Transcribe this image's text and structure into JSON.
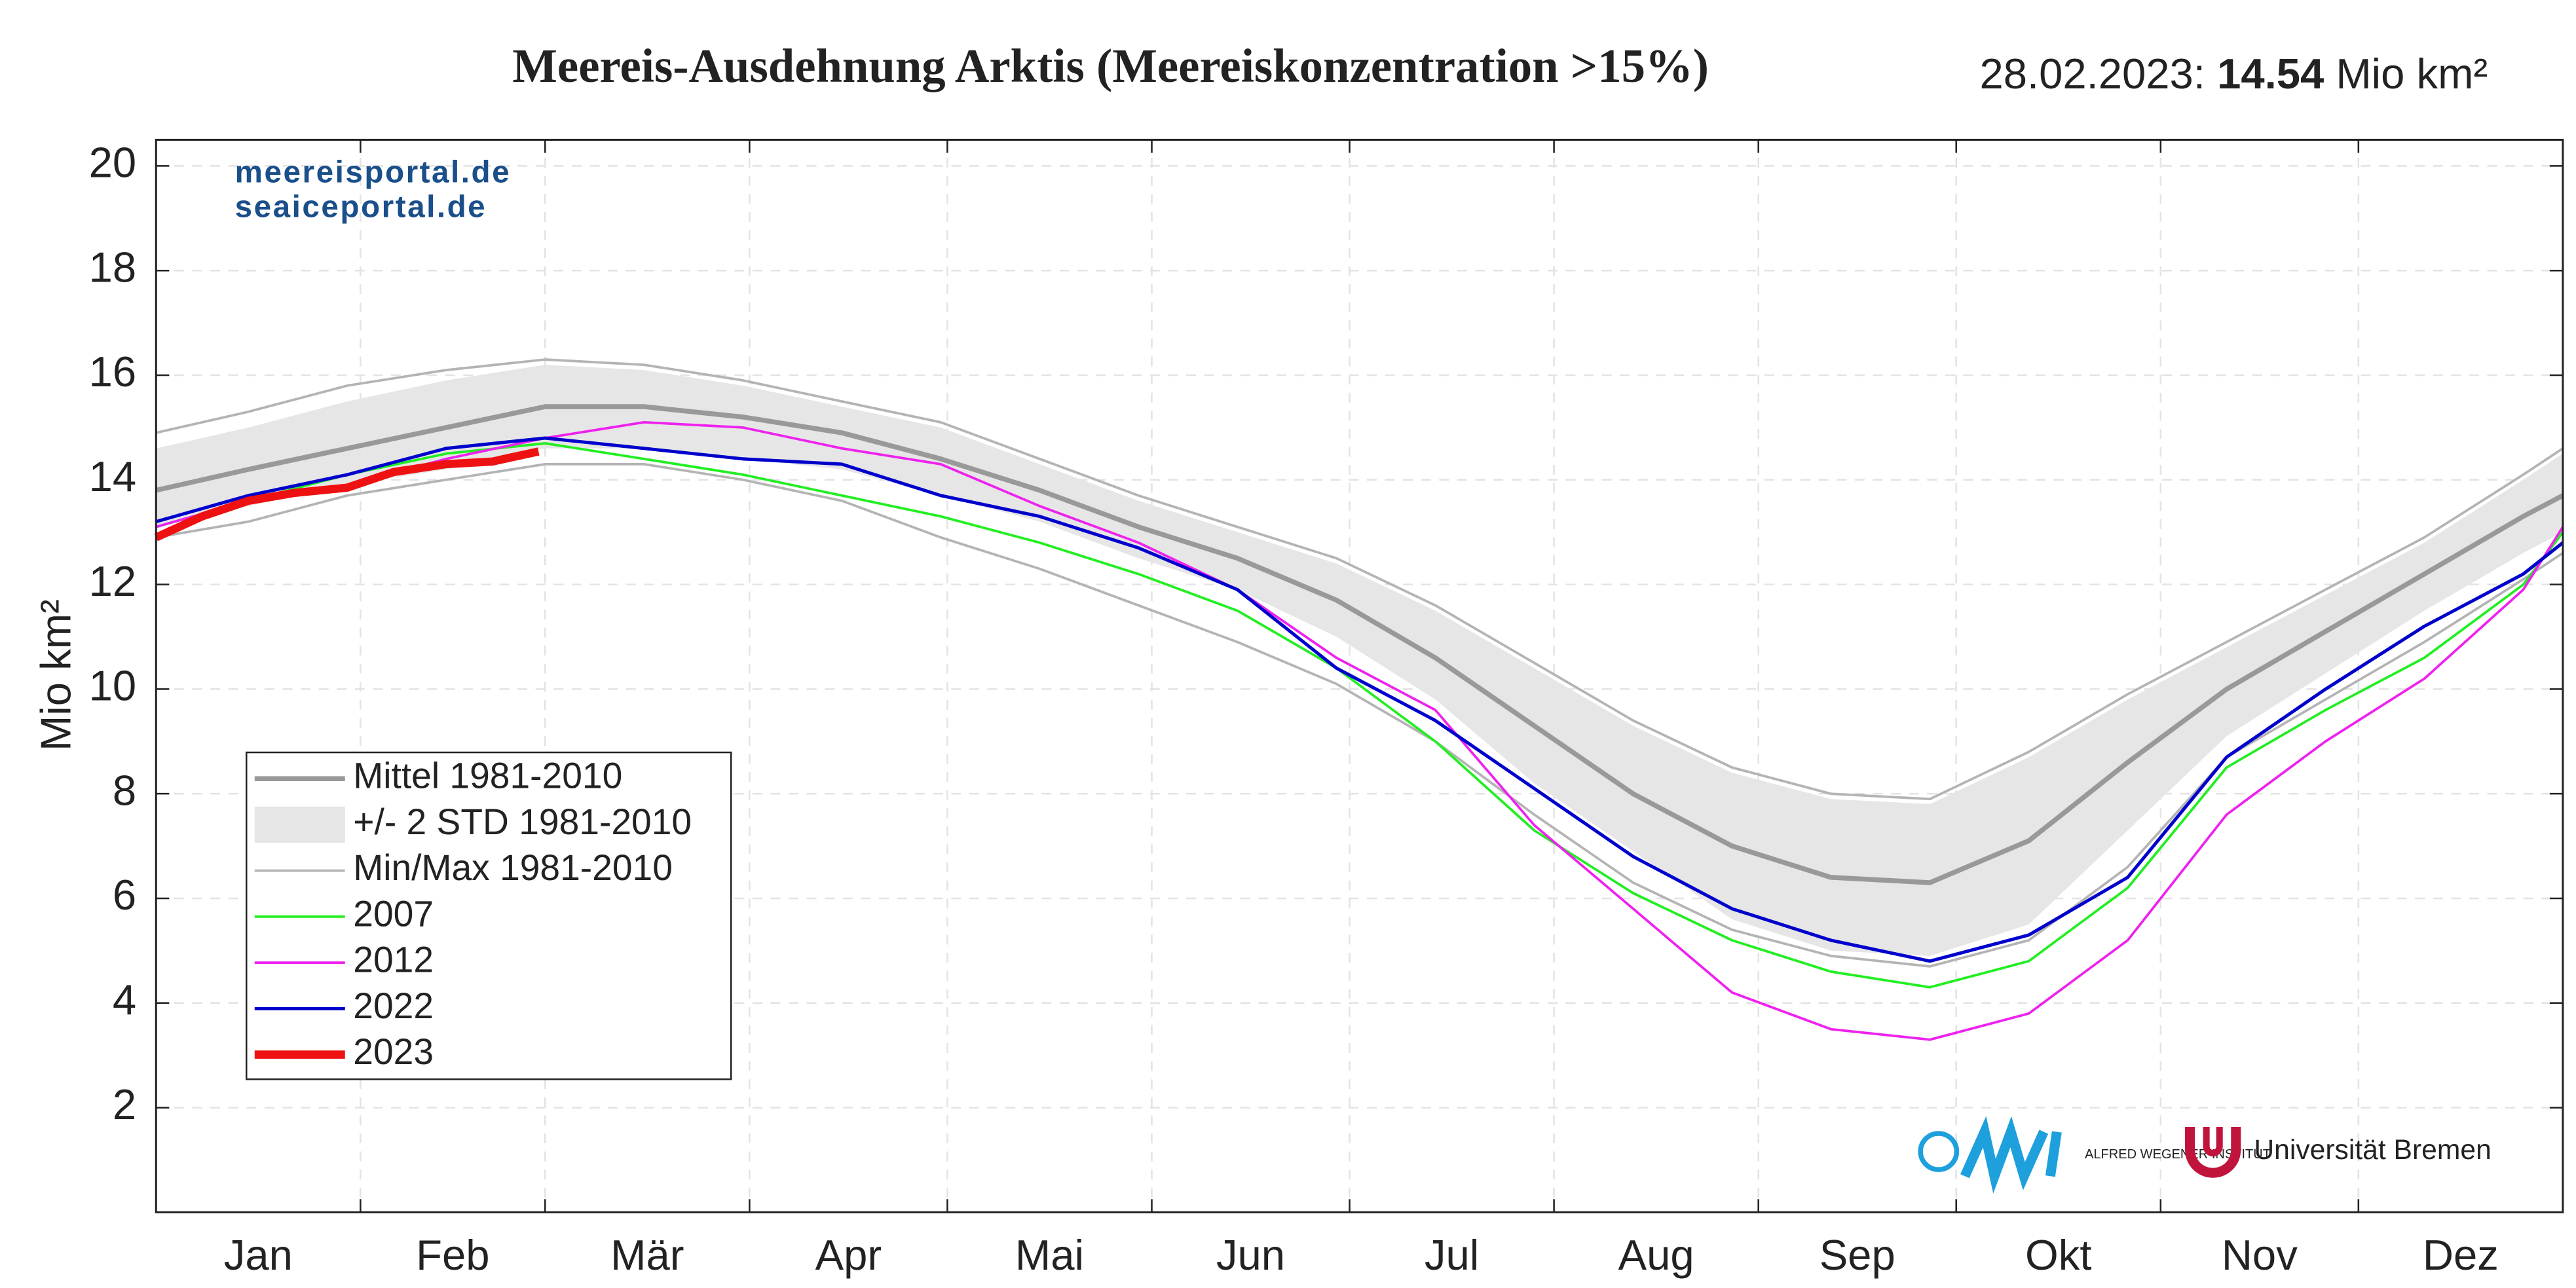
{
  "chart_data": {
    "type": "line",
    "title": "Meereis-Ausdehnung Arktis (Meereiskonzentration >15%)",
    "header_date": "28.02.2023:",
    "header_value": 14.54,
    "header_unit": "Mio km²",
    "ylabel": "Mio km²",
    "watermarks": [
      "meereisportal.de",
      "seaiceportal.de"
    ],
    "logos": [
      "ALFRED WEGENER INSTITUT",
      "Universität Bremen"
    ],
    "categories": [
      "Jan",
      "Feb",
      "Mär",
      "Apr",
      "Mai",
      "Jun",
      "Jul",
      "Aug",
      "Sep",
      "Okt",
      "Nov",
      "Dez"
    ],
    "xlim": [
      1,
      366
    ],
    "xticks": [
      1,
      32,
      60,
      91,
      121,
      152,
      182,
      213,
      244,
      274,
      305,
      335
    ],
    "ylim": [
      0,
      20.5
    ],
    "yticks": [
      2,
      4,
      6,
      8,
      10,
      12,
      14,
      16,
      18,
      20
    ],
    "grid": true,
    "legend": "lower left",
    "x": [
      1,
      15,
      30,
      45,
      60,
      75,
      90,
      105,
      120,
      135,
      150,
      165,
      180,
      195,
      210,
      225,
      240,
      255,
      270,
      285,
      300,
      315,
      330,
      345,
      360,
      366
    ],
    "series": [
      {
        "name": "Mittel 1981-2010",
        "color": "#999999",
        "width": 3,
        "values": [
          13.8,
          14.2,
          14.6,
          15.0,
          15.4,
          15.4,
          15.2,
          14.9,
          14.4,
          13.8,
          13.1,
          12.5,
          11.7,
          10.6,
          9.3,
          8.0,
          7.0,
          6.4,
          6.3,
          7.1,
          8.6,
          10.0,
          11.1,
          12.2,
          13.3,
          13.7
        ]
      },
      {
        "name": "+/- 2 STD 1981-2010",
        "color": "#e6e6e6",
        "upper": [
          14.6,
          15.0,
          15.5,
          15.9,
          16.2,
          16.1,
          15.8,
          15.4,
          15.0,
          14.3,
          13.6,
          13.0,
          12.4,
          11.5,
          10.4,
          9.3,
          8.4,
          7.9,
          7.8,
          8.7,
          9.8,
          10.8,
          11.8,
          12.8,
          14.0,
          14.5
        ],
        "lower": [
          13.1,
          13.5,
          13.9,
          14.2,
          14.6,
          14.6,
          14.4,
          14.2,
          13.7,
          13.2,
          12.5,
          11.9,
          11.0,
          9.8,
          8.2,
          6.9,
          5.6,
          5.0,
          4.9,
          5.5,
          7.3,
          9.1,
          10.3,
          11.5,
          12.6,
          13.0
        ]
      },
      {
        "name": "Min/Max 1981-2010",
        "color": "#b4b4b4",
        "width": 1.5,
        "max": [
          14.9,
          15.3,
          15.8,
          16.1,
          16.3,
          16.2,
          15.9,
          15.5,
          15.1,
          14.4,
          13.7,
          13.1,
          12.5,
          11.6,
          10.5,
          9.4,
          8.5,
          8.0,
          7.9,
          8.8,
          9.9,
          10.9,
          11.9,
          12.9,
          14.1,
          14.6
        ],
        "min": [
          12.9,
          13.2,
          13.7,
          14.0,
          14.3,
          14.3,
          14.0,
          13.6,
          12.9,
          12.3,
          11.6,
          10.9,
          10.1,
          9.0,
          7.6,
          6.3,
          5.4,
          4.9,
          4.7,
          5.2,
          6.6,
          8.7,
          9.8,
          10.9,
          12.1,
          12.6
        ]
      },
      {
        "name": "2007",
        "color": "#22ee22",
        "width": 1.5,
        "values": [
          13.1,
          13.6,
          14.1,
          14.5,
          14.7,
          14.4,
          14.1,
          13.7,
          13.3,
          12.8,
          12.2,
          11.5,
          10.4,
          9.0,
          7.3,
          6.1,
          5.2,
          4.6,
          4.3,
          4.8,
          6.2,
          8.5,
          9.6,
          10.6,
          12.0,
          13.0
        ]
      },
      {
        "name": "2012",
        "color": "#ee22ee",
        "width": 1.5,
        "values": [
          13.1,
          13.6,
          13.9,
          14.4,
          14.8,
          15.1,
          15.0,
          14.6,
          14.3,
          13.5,
          12.8,
          11.9,
          10.6,
          9.6,
          7.4,
          5.8,
          4.2,
          3.5,
          3.3,
          3.8,
          5.2,
          7.6,
          9.0,
          10.2,
          11.9,
          13.1
        ]
      },
      {
        "name": "2022",
        "color": "#0000cc",
        "width": 2,
        "values": [
          13.2,
          13.7,
          14.1,
          14.6,
          14.8,
          14.6,
          14.4,
          14.3,
          13.7,
          13.3,
          12.7,
          11.9,
          10.4,
          9.4,
          8.1,
          6.8,
          5.8,
          5.2,
          4.8,
          5.3,
          6.4,
          8.7,
          10.0,
          11.2,
          12.2,
          12.8
        ]
      },
      {
        "name": "2023",
        "color": "#ee1111",
        "width": 5,
        "x": [
          1,
          8,
          15,
          22,
          30,
          37,
          45,
          52,
          59
        ],
        "values": [
          12.9,
          13.3,
          13.6,
          13.75,
          13.85,
          14.15,
          14.3,
          14.35,
          14.54
        ]
      }
    ]
  }
}
